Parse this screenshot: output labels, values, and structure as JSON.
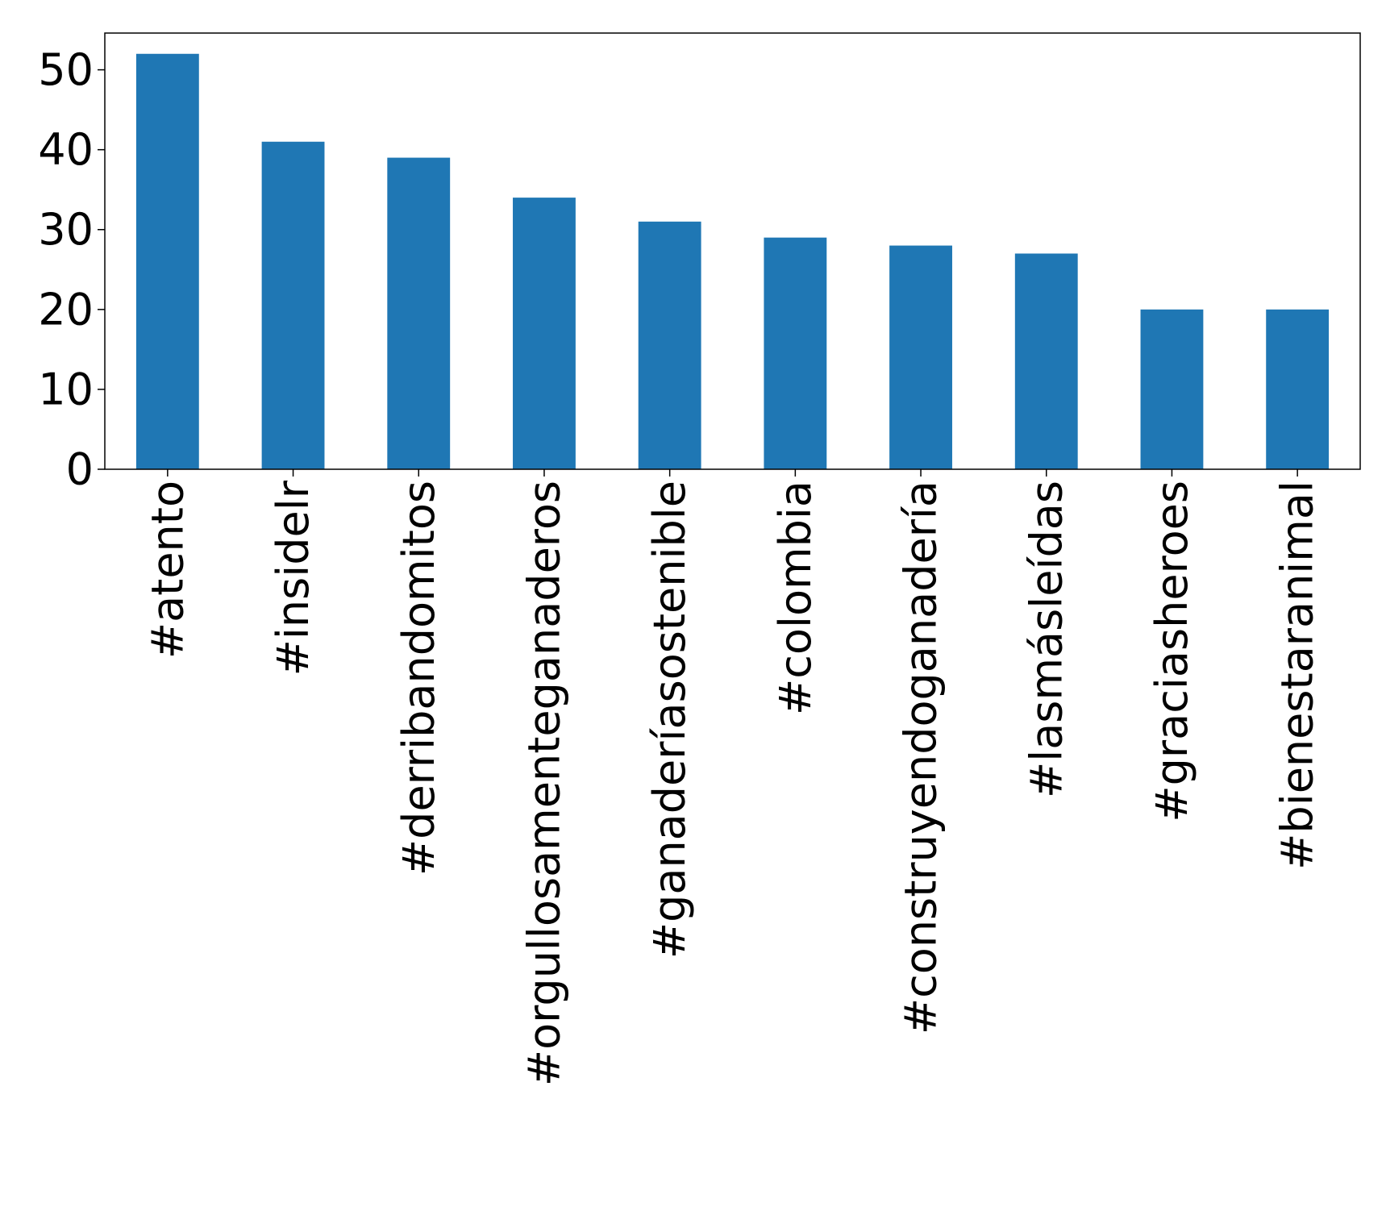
{
  "chart_data": {
    "type": "bar",
    "categories": [
      "#atento",
      "#insidelr",
      "#derribandomitos",
      "#orgullosamenteganaderos",
      "#ganaderíasostenible",
      "#colombia",
      "#construyendoganadería",
      "#lasmásleídas",
      "#graciasheroes",
      "#bienestaranimal"
    ],
    "values": [
      52,
      41,
      39,
      34,
      31,
      29,
      28,
      27,
      20,
      20
    ],
    "title": "",
    "xlabel": "",
    "ylabel": "",
    "ylim": [
      0,
      54.6
    ],
    "yticks": [
      0,
      10,
      20,
      30,
      40,
      50
    ],
    "grid": false,
    "legend": "none",
    "bar_color": "#1f77b4"
  }
}
